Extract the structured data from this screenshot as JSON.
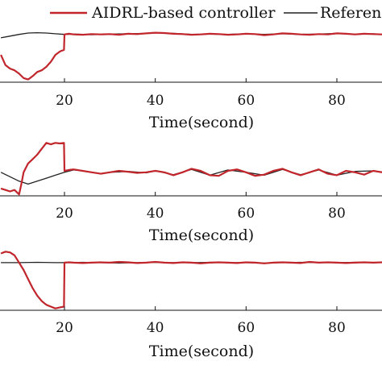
{
  "legend": {
    "items": [
      {
        "label": "AIDRL-based controller",
        "color": "#c0262b"
      },
      {
        "label": "Reference",
        "color": "#222222"
      }
    ]
  },
  "chart_data": [
    {
      "type": "line",
      "xlabel": "Time(second)",
      "xticks": [
        20,
        40,
        60,
        80
      ],
      "xlim": [
        6,
        90
      ],
      "ylim": [
        -1.4,
        0.3
      ],
      "series": [
        {
          "name": "AIDRL-based controller",
          "color": "#c0262b",
          "x": [
            6,
            7,
            8,
            9,
            10,
            11,
            12,
            13,
            14,
            15,
            16,
            17,
            18,
            19,
            19.9,
            20,
            21,
            22,
            24,
            26,
            28,
            30,
            32,
            34,
            36,
            38,
            40,
            42,
            44,
            46,
            48,
            50,
            52,
            54,
            56,
            58,
            60,
            62,
            64,
            66,
            68,
            70,
            72,
            74,
            76,
            78,
            80,
            82,
            84,
            86,
            88,
            90
          ],
          "y": [
            -0.6,
            -0.9,
            -1.0,
            -1.05,
            -1.15,
            -1.28,
            -1.32,
            -1.22,
            -1.1,
            -1.05,
            -0.95,
            -0.8,
            -0.6,
            -0.5,
            -0.45,
            0.0,
            0.02,
            0.0,
            -0.01,
            0.01,
            0.0,
            0.01,
            -0.01,
            0.02,
            0.01,
            0.03,
            0.05,
            0.04,
            0.02,
            0.01,
            -0.01,
            0.0,
            0.02,
            0.01,
            -0.01,
            0.0,
            0.02,
            0.01,
            -0.02,
            0.0,
            0.03,
            0.02,
            0.0,
            -0.01,
            0.01,
            0.0,
            0.03,
            0.02,
            0.0,
            0.02,
            0.01,
            0.0
          ]
        },
        {
          "name": "Reference",
          "color": "#222222",
          "x": [
            6,
            8,
            10,
            12,
            14,
            16,
            18,
            20,
            22,
            24,
            26,
            28,
            30,
            34,
            38,
            40,
            44,
            48,
            52,
            56,
            60,
            64,
            68,
            72,
            76,
            80,
            84,
            88,
            90
          ],
          "y": [
            -0.1,
            -0.05,
            0.0,
            0.04,
            0.05,
            0.04,
            0.02,
            0.0,
            0.01,
            0.0,
            -0.01,
            0.0,
            0.01,
            0.02,
            0.03,
            0.05,
            0.03,
            0.0,
            0.01,
            0.0,
            0.02,
            0.0,
            0.02,
            0.0,
            0.01,
            0.03,
            0.0,
            0.02,
            0.0
          ]
        }
      ]
    },
    {
      "type": "line",
      "xlabel": "Time(second)",
      "xticks": [
        20,
        40,
        60,
        80
      ],
      "xlim": [
        6,
        90
      ],
      "ylim": [
        -0.8,
        1.2
      ],
      "series": [
        {
          "name": "AIDRL-based controller",
          "color": "#c0262b",
          "x": [
            6,
            7,
            8,
            9,
            10,
            10.5,
            11,
            12,
            13,
            14,
            15,
            16,
            17,
            18,
            19,
            19.9,
            20,
            21,
            22,
            24,
            26,
            28,
            30,
            32,
            34,
            36,
            38,
            40,
            42,
            44,
            46,
            48,
            50,
            52,
            54,
            56,
            58,
            60,
            62,
            64,
            66,
            68,
            70,
            72,
            74,
            76,
            78,
            80,
            82,
            84,
            86,
            88,
            90
          ],
          "y": [
            -0.55,
            -0.6,
            -0.65,
            -0.6,
            -0.75,
            -0.4,
            0.0,
            0.3,
            0.45,
            0.6,
            0.8,
            1.0,
            0.95,
            1.0,
            0.98,
            1.0,
            0.05,
            0.08,
            0.1,
            0.05,
            0.0,
            -0.05,
            0.0,
            0.05,
            0.02,
            -0.02,
            0.0,
            0.05,
            0.0,
            -0.1,
            0.0,
            0.12,
            0.05,
            -0.1,
            -0.12,
            0.05,
            0.1,
            0.0,
            -0.12,
            -0.08,
            0.05,
            0.12,
            0.0,
            -0.1,
            0.0,
            0.1,
            -0.05,
            -0.1,
            0.05,
            0.0,
            -0.08,
            0.05,
            0.0
          ]
        },
        {
          "name": "Reference",
          "color": "#222222",
          "x": [
            6,
            8,
            10,
            12,
            14,
            16,
            18,
            20,
            22,
            24,
            26,
            28,
            30,
            34,
            38,
            40,
            44,
            48,
            52,
            56,
            60,
            64,
            68,
            72,
            76,
            80,
            84,
            88,
            90
          ],
          "y": [
            0.0,
            -0.15,
            -0.3,
            -0.4,
            -0.3,
            -0.2,
            -0.1,
            0.0,
            0.08,
            0.05,
            0.0,
            -0.05,
            0.0,
            0.03,
            -0.02,
            0.05,
            -0.08,
            0.1,
            -0.1,
            0.08,
            0.0,
            -0.1,
            0.1,
            -0.08,
            0.08,
            -0.1,
            0.03,
            0.05,
            0.0
          ]
        }
      ]
    },
    {
      "type": "line",
      "xlabel": "Time(second)",
      "xticks": [
        20,
        40,
        60,
        80
      ],
      "xlim": [
        6,
        90
      ],
      "ylim": [
        -1.3,
        0.35
      ],
      "series": [
        {
          "name": "AIDRL-based controller",
          "color": "#c0262b",
          "x": [
            6,
            7,
            8,
            9,
            10,
            11,
            12,
            13,
            14,
            15,
            16,
            17,
            18,
            19,
            19.9,
            20,
            21,
            22,
            24,
            26,
            28,
            30,
            32,
            34,
            36,
            38,
            40,
            42,
            44,
            46,
            48,
            50,
            52,
            54,
            56,
            58,
            60,
            62,
            64,
            66,
            68,
            70,
            72,
            74,
            76,
            78,
            80,
            82,
            84,
            86,
            88,
            90
          ],
          "y": [
            0.25,
            0.3,
            0.28,
            0.2,
            0.0,
            -0.2,
            -0.45,
            -0.7,
            -0.9,
            -1.05,
            -1.15,
            -1.2,
            -1.25,
            -1.22,
            -1.2,
            0.0,
            0.01,
            0.0,
            -0.01,
            0.0,
            0.01,
            0.0,
            0.02,
            0.01,
            -0.01,
            0.0,
            0.02,
            0.0,
            -0.01,
            0.01,
            0.0,
            -0.02,
            0.0,
            0.01,
            0.0,
            -0.01,
            0.01,
            0.0,
            -0.02,
            0.0,
            0.01,
            0.0,
            -0.01,
            0.02,
            0.0,
            0.01,
            0.0,
            -0.01,
            0.0,
            0.01,
            0.0,
            0.01
          ]
        },
        {
          "name": "Reference",
          "color": "#222222",
          "x": [
            6,
            10,
            14,
            18,
            20,
            24,
            28,
            32,
            36,
            40,
            44,
            48,
            52,
            56,
            60,
            64,
            68,
            72,
            76,
            80,
            84,
            88,
            90
          ],
          "y": [
            0.0,
            0.0,
            0.01,
            0.0,
            0.0,
            0.01,
            0.0,
            -0.01,
            0.0,
            0.01,
            0.0,
            0.0,
            0.01,
            0.0,
            0.0,
            -0.01,
            0.0,
            0.01,
            0.0,
            0.0,
            0.01,
            0.0,
            0.0
          ]
        }
      ]
    }
  ]
}
